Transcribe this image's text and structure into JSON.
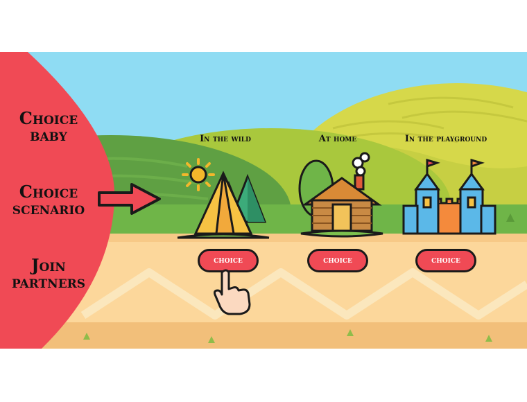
{
  "sidebar": {
    "items": [
      {
        "line1": "Choice",
        "line2": "baby"
      },
      {
        "line1": "Choice",
        "line2": "scenario"
      },
      {
        "line1": "Join",
        "line2": "partners"
      }
    ],
    "panel_color": "#f04a55"
  },
  "scenarios": [
    {
      "title": "In the wild",
      "button": "choice",
      "icon": "tent-icon"
    },
    {
      "title": "At home",
      "button": "choice",
      "icon": "log-cabin-icon"
    },
    {
      "title": "In the playground",
      "button": "choice",
      "icon": "castle-icon"
    }
  ],
  "colors": {
    "sky": "#8fdcf3",
    "grass": "#6fb548",
    "path": "#fcd79b",
    "button": "#f04a55"
  },
  "pointer_icon": "hand-pointer-icon"
}
